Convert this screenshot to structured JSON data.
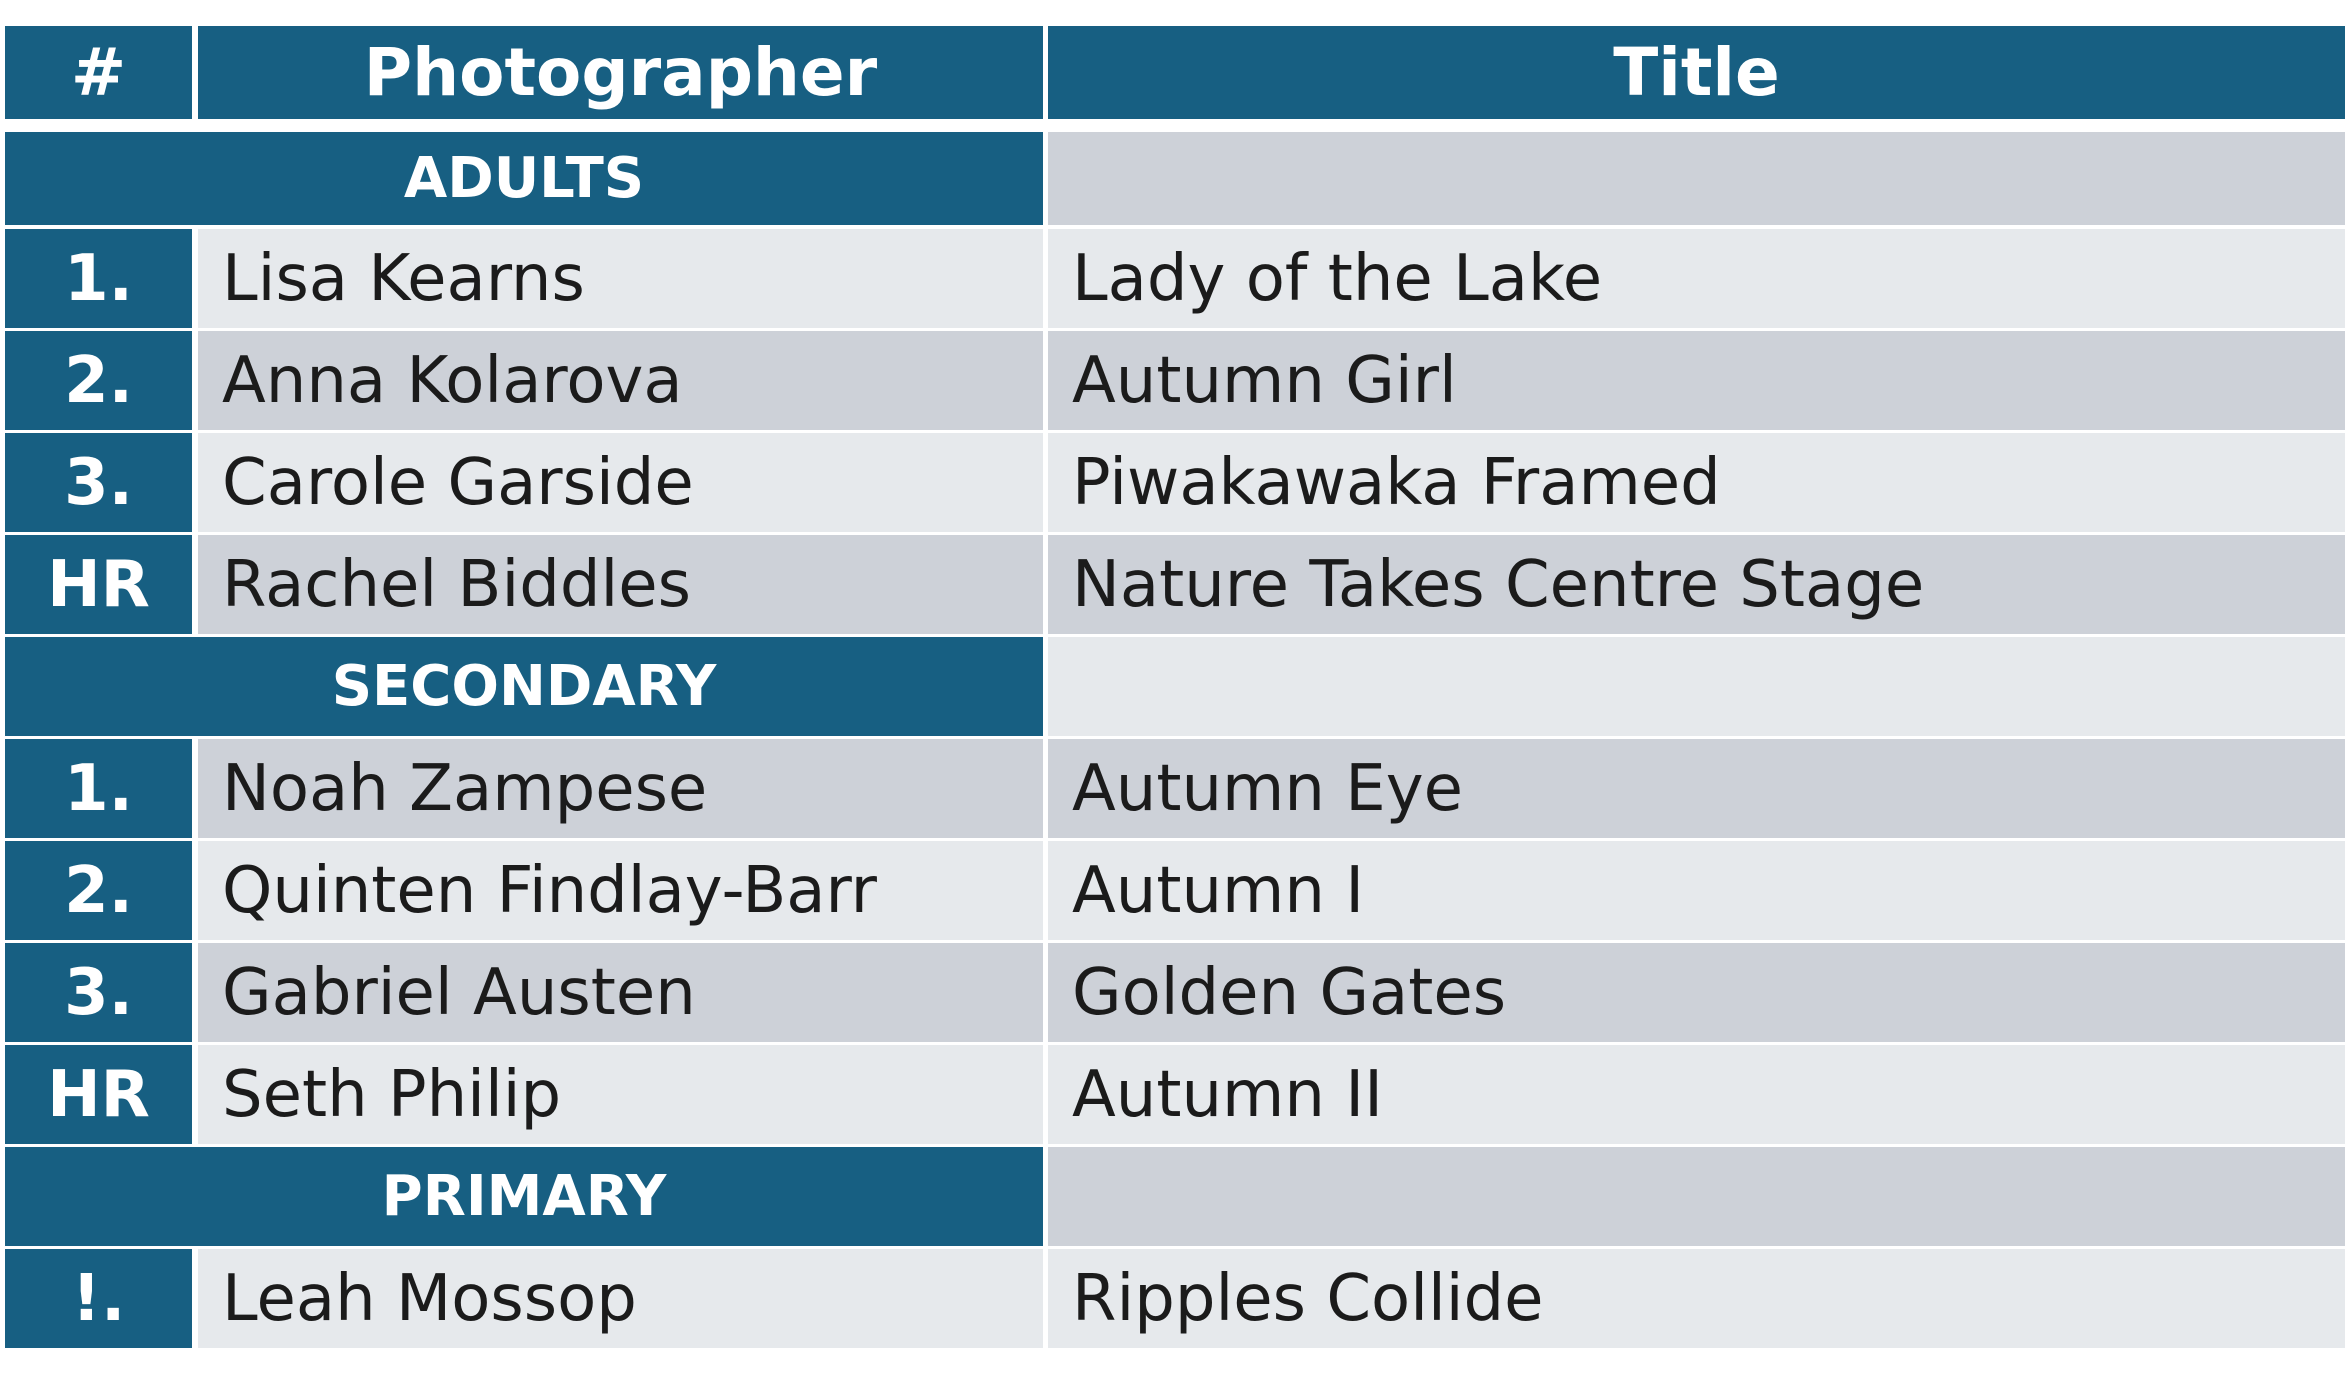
{
  "header": [
    "#",
    "Photographer",
    "Title"
  ],
  "sections": [
    {
      "name": "ADULTS",
      "rows": [
        [
          "1.",
          "Lisa Kearns",
          "Lady of the Lake"
        ],
        [
          "2.",
          "Anna Kolarova",
          "Autumn Girl"
        ],
        [
          "3.",
          "Carole Garside",
          "Piwakawaka Framed"
        ],
        [
          "HR",
          "Rachel Biddles",
          "Nature Takes Centre Stage"
        ]
      ]
    },
    {
      "name": "SECONDARY",
      "rows": [
        [
          "1.",
          "Noah Zampese",
          "Autumn Eye"
        ],
        [
          "2.",
          "Quinten Findlay-Barr",
          "Autumn I"
        ],
        [
          "3.",
          "Gabriel Austen",
          "Golden Gates"
        ],
        [
          "HR",
          "Seth Philip",
          "Autumn II"
        ]
      ]
    },
    {
      "name": "PRIMARY",
      "rows": [
        [
          "!.",
          "Leah Mossop",
          "Ripples Collide"
        ]
      ]
    }
  ]
}
